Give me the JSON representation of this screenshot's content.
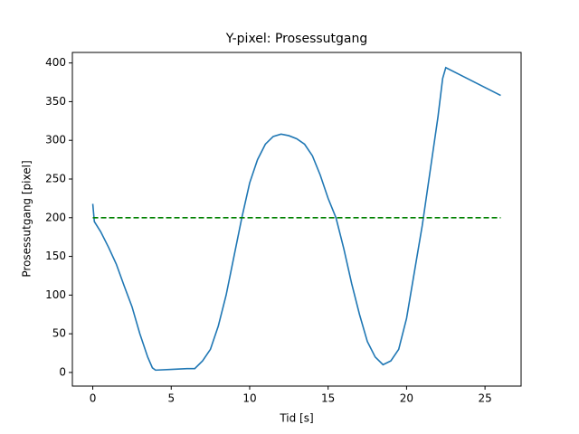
{
  "chart_data": {
    "type": "line",
    "title": "Y-pixel: Prosessutgang",
    "x_label": "Tid [s]",
    "y_label": "Prosessutgang [pixel]",
    "xlim": [
      -1.3,
      27.3
    ],
    "xticks": [
      0,
      5,
      10,
      15,
      20,
      25
    ],
    "ylim": [
      -17.6,
      413.6
    ],
    "yticks": [
      0,
      50,
      100,
      150,
      200,
      250,
      300,
      350,
      400
    ],
    "series": [
      {
        "color": "#1f77b4",
        "linestyle": "solid",
        "x": [
          0,
          0.1,
          0.5,
          1,
          1.5,
          2,
          2.5,
          3,
          3.5,
          3.8,
          4,
          5,
          6,
          6.5,
          7,
          7.5,
          8,
          8.5,
          9,
          9.5,
          10,
          10.5,
          11,
          11.5,
          12,
          12.5,
          13,
          13.5,
          14,
          14.5,
          15,
          15.5,
          16,
          16.5,
          17,
          17.5,
          18,
          18.5,
          19,
          19.5,
          20,
          20.5,
          21,
          21.5,
          22,
          22.3,
          22.5,
          26
        ],
        "values": [
          218,
          195,
          182,
          162,
          140,
          112,
          85,
          50,
          20,
          6,
          3,
          4,
          5,
          5,
          15,
          30,
          60,
          100,
          150,
          200,
          245,
          275,
          295,
          305,
          308,
          306,
          302,
          295,
          280,
          255,
          225,
          200,
          160,
          115,
          75,
          40,
          20,
          10,
          15,
          30,
          70,
          130,
          190,
          260,
          330,
          380,
          394,
          358
        ]
      },
      {
        "color": "#008000",
        "linestyle": "dashed",
        "x": [
          0,
          26
        ],
        "values": [
          200,
          200
        ]
      }
    ]
  }
}
